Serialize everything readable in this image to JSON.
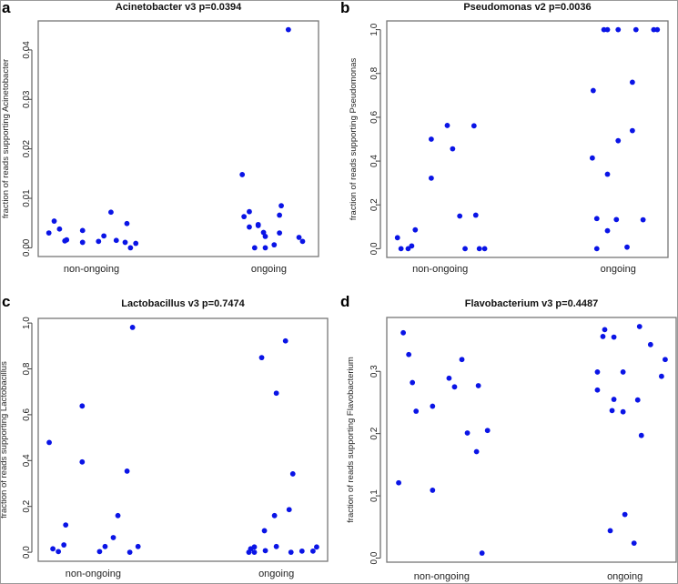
{
  "colors": {
    "point": "#0a14e6",
    "box": "#777777"
  },
  "chart_data": [
    {
      "type": "scatter",
      "panel_letter": "a",
      "title": "Acinetobacter v3 p=0.0394",
      "xlabel": "",
      "ylabel": "fraction of reads supporting Acinetobacter",
      "categories": [
        "non-ongoing",
        "ongoing"
      ],
      "xlim": [
        0.7,
        2.28
      ],
      "yticks": [
        0,
        0.01,
        0.02,
        0.03,
        0.04
      ],
      "ytick_labels": [
        "0.00",
        "0.01",
        "0.02",
        "0.03",
        "0.04"
      ],
      "series": [
        {
          "name": "non-ongoing",
          "x": [
            0.76,
            0.79,
            0.82,
            0.85,
            0.86,
            0.95,
            0.95,
            1.04,
            1.07,
            1.11,
            1.14,
            1.19,
            1.2,
            1.22,
            1.25
          ],
          "y": [
            0.003,
            0.0054,
            0.0038,
            0.0014,
            0.0016,
            0.0035,
            0.0011,
            0.0013,
            0.0024,
            0.0072,
            0.0015,
            0.0011,
            0.0049,
            0.0,
            0.0009
          ]
        },
        {
          "name": "ongoing",
          "x": [
            1.85,
            1.86,
            1.89,
            1.89,
            1.92,
            1.94,
            1.94,
            1.97,
            1.98,
            1.98,
            2.03,
            2.06,
            2.06,
            2.07,
            2.11,
            2.17,
            2.19
          ],
          "y": [
            0.0148,
            0.0063,
            0.0073,
            0.0042,
            0.0,
            0.0045,
            0.0047,
            0.0031,
            0.0023,
            0.0,
            0.0006,
            0.0066,
            0.003,
            0.0085,
            0.0441,
            0.0021,
            0.0013
          ]
        }
      ]
    },
    {
      "type": "scatter",
      "panel_letter": "b",
      "title": "Pseudomonas v2 p=0.0036",
      "xlabel": "",
      "ylabel": "fraction of reads supporting Pseudomonas",
      "categories": [
        "non-ongoing",
        "ongoing"
      ],
      "xlim": [
        0.7,
        2.28
      ],
      "yticks": [
        0,
        0.2,
        0.4,
        0.6,
        0.8,
        1.0
      ],
      "ytick_labels": [
        "0.0",
        "0.2",
        "0.4",
        "0.6",
        "0.8",
        "1.0"
      ],
      "series": [
        {
          "name": "non-ongoing",
          "x": [
            0.76,
            0.78,
            0.82,
            0.84,
            0.86,
            0.95,
            0.95,
            1.04,
            1.07,
            1.11,
            1.14,
            1.19,
            1.2,
            1.22,
            1.25
          ],
          "y": [
            0.05,
            0,
            0,
            0.0125,
            0.086,
            0.5,
            0.322,
            0.5625,
            0.456,
            0.149,
            0,
            0.561,
            0.153,
            0,
            0
          ]
        },
        {
          "name": "ongoing",
          "x": [
            1.855,
            1.86,
            1.88,
            1.88,
            1.92,
            1.94,
            1.94,
            1.94,
            1.99,
            2.0,
            2.0,
            2.05,
            2.08,
            2.08,
            2.1,
            2.14,
            2.2,
            2.22
          ],
          "y": [
            0.414,
            0.722,
            0.1375,
            0,
            1,
            1,
            0.34,
            0.082,
            0.133,
            0.493,
            1,
            0.007,
            0.539,
            0.76,
            1,
            0.132,
            1,
            1
          ]
        }
      ]
    },
    {
      "type": "scatter",
      "panel_letter": "c",
      "title": "Lactobacillus v3 p=0.7474",
      "xlabel": "",
      "ylabel": "fraction of reads supporting Lactobacillus",
      "categories": [
        "non-ongoing",
        "ongoing"
      ],
      "xlim": [
        0.7,
        2.28
      ],
      "yticks": [
        0,
        0.2,
        0.4,
        0.6,
        0.8,
        1.0
      ],
      "ytick_labels": [
        "0.0",
        "0.2",
        "0.4",
        "0.6",
        "0.8",
        "1.0"
      ],
      "series": [
        {
          "name": "non-ongoing",
          "x": [
            0.76,
            0.78,
            0.81,
            0.84,
            0.85,
            0.94,
            0.94,
            1.035,
            1.065,
            1.11,
            1.135,
            1.185,
            1.2,
            1.215,
            1.245
          ],
          "y": [
            0.479,
            0.015,
            0.003,
            0.032,
            0.119,
            0.638,
            0.394,
            0.003,
            0.025,
            0.064,
            0.16,
            0.354,
            0,
            0.981,
            0.025
          ]
        },
        {
          "name": "ongoing",
          "x": [
            1.85,
            1.86,
            1.88,
            1.88,
            1.92,
            1.935,
            1.94,
            1.99,
            2.0,
            2.0,
            2.05,
            2.07,
            2.08,
            2.09,
            2.14,
            2.2,
            2.22
          ],
          "y": [
            0,
            0.015,
            0.023,
            0,
            0.849,
            0.094,
            0.007,
            0.16,
            0.694,
            0.025,
            0.922,
            0.186,
            0,
            0.342,
            0.005,
            0.005,
            0.023
          ]
        }
      ]
    },
    {
      "type": "scatter",
      "panel_letter": "d",
      "title": "Flavobacterium v3 p=0.4487",
      "xlabel": "",
      "ylabel": "fraction of reads supporting Flavobacterium",
      "categories": [
        "non-ongoing",
        "ongoing"
      ],
      "xlim": [
        0.7,
        2.28
      ],
      "yticks": [
        0,
        0.1,
        0.2,
        0.3
      ],
      "ytick_labels": [
        "0.0",
        "0.1",
        "0.2",
        "0.3"
      ],
      "series": [
        {
          "name": "non-ongoing",
          "x": [
            0.765,
            0.79,
            0.82,
            0.84,
            0.86,
            0.95,
            0.95,
            1.04,
            1.07,
            1.11,
            1.14,
            1.19,
            1.2,
            1.22,
            1.25
          ],
          "y": [
            0.121,
            0.362,
            0.327,
            0.282,
            0.236,
            0.244,
            0.109,
            0.289,
            0.275,
            0.319,
            0.201,
            0.171,
            0.277,
            0.008,
            0.205
          ]
        },
        {
          "name": "ongoing",
          "x": [
            1.85,
            1.85,
            1.88,
            1.89,
            1.92,
            1.93,
            1.94,
            1.94,
            1.99,
            1.99,
            2.0,
            2.05,
            2.07,
            2.08,
            2.09,
            2.14,
            2.2,
            2.22
          ],
          "y": [
            0.299,
            0.27,
            0.356,
            0.367,
            0.044,
            0.237,
            0.355,
            0.255,
            0.299,
            0.235,
            0.07,
            0.024,
            0.254,
            0.372,
            0.197,
            0.343,
            0.292,
            0.319
          ]
        }
      ]
    }
  ]
}
